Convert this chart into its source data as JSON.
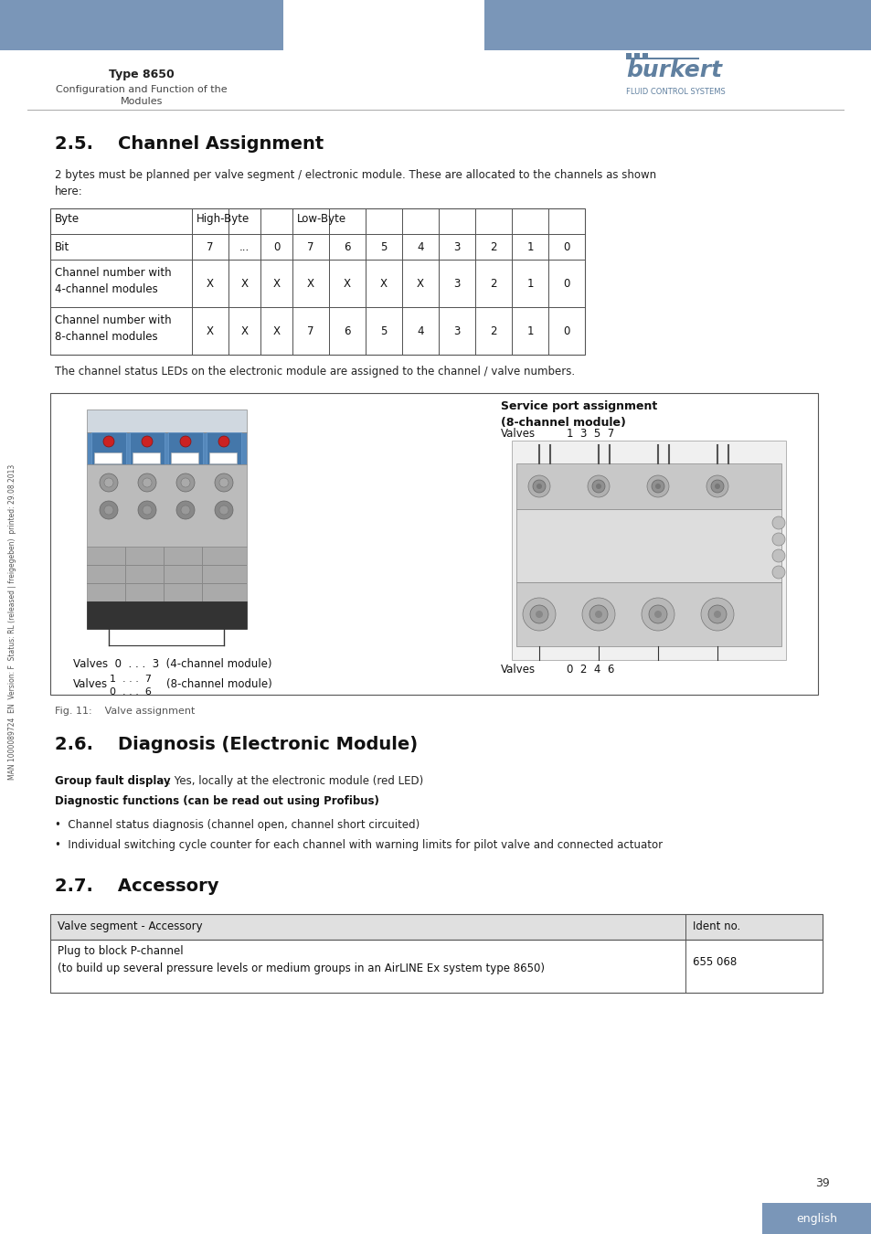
{
  "header_blue": "#7a96b8",
  "header_text_color": "#333333",
  "title_type": "Type 8650",
  "subtitle": "Configuration and Function of the\nModules",
  "burkert_color": "#6080a0",
  "section_25_title": "2.5.    Channel Assignment",
  "section_25_body": "2 bytes must be planned per valve segment / electronic module. These are allocated to the channels as shown\nhere:",
  "table1_row2_label": "Channel number with\n4-channel modules",
  "table1_row3_label": "Channel number with\n8-channel modules",
  "led_text": "The channel status LEDs on the electronic module are assigned to the channel / valve numbers.",
  "fig11_caption": "Fig. 11:    Valve assignment",
  "section_26_title": "2.6.    Diagnosis (Electronic Module)",
  "group_fault_bold": "Group fault display",
  "group_fault_text": ": Yes, locally at the electronic module (red LED)",
  "diag_func_bold": "Diagnostic functions (can be read out using Profibus)",
  "diag_func_colon": ":",
  "bullet1": "•  Channel status diagnosis (channel open, channel short circuited)",
  "bullet2": "•  Individual switching cycle counter for each channel with warning limits for pilot valve and connected actuator",
  "section_27_title": "2.7.    Accessory",
  "table2_col1": "Valve segment - Accessory",
  "table2_col2": "Ident no.",
  "table2_row1_col1": "Plug to block P-channel\n(to build up several pressure levels or medium groups in an AirLINE Ex system type 8650)",
  "table2_row1_col2": "655 068",
  "page_number": "39",
  "footer_lang": "english",
  "footer_lang_bg": "#7a96b8",
  "side_text": "MAN 1000089724  EN  Version: F  Status: RL (released | freigegeben)  printed: 29.08.2013",
  "service_port_title": "Service port assignment\n(8-channel module)"
}
